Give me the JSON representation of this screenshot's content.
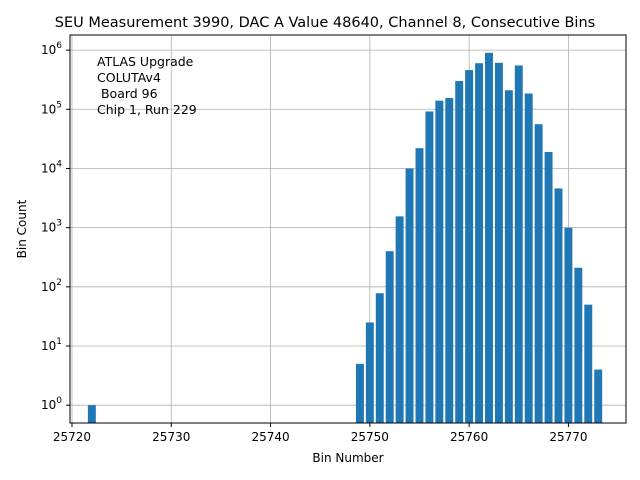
{
  "chart_data": {
    "type": "bar",
    "title": "SEU Measurement 3990, DAC A Value 48640, Channel 8, Consecutive Bins",
    "xlabel": "Bin Number",
    "ylabel": "Bin Count",
    "yscale": "log",
    "grid": true,
    "xlim": [
      25719.8,
      25775.8
    ],
    "ylim": [
      0.5,
      1800000
    ],
    "xticks": [
      25720,
      25730,
      25740,
      25750,
      25760,
      25770
    ],
    "xtick_labels": [
      "25720",
      "25730",
      "25740",
      "25750",
      "25760",
      "25770"
    ],
    "yticks": [
      1,
      10,
      100,
      1000,
      10000,
      100000,
      1000000
    ],
    "ytick_exponents": [
      "0",
      "1",
      "2",
      "3",
      "4",
      "5",
      "6"
    ],
    "ytick_base": "10",
    "bar_width": 0.8,
    "x": [
      25722,
      25749,
      25750,
      25751,
      25752,
      25753,
      25754,
      25755,
      25756,
      25757,
      25758,
      25759,
      25760,
      25761,
      25762,
      25763,
      25764,
      25765,
      25766,
      25767,
      25768,
      25769,
      25770,
      25771,
      25772,
      25773
    ],
    "values": [
      1,
      5,
      25,
      78,
      400,
      1550,
      10000,
      22000,
      92000,
      140000,
      155000,
      300000,
      460000,
      600000,
      900000,
      610000,
      210000,
      550000,
      185000,
      56000,
      19000,
      4600,
      1000,
      210,
      50,
      4
    ],
    "annotation": [
      "ATLAS Upgrade",
      "COLUTAv4",
      " Board 96",
      "Chip 1, Run 229"
    ]
  }
}
